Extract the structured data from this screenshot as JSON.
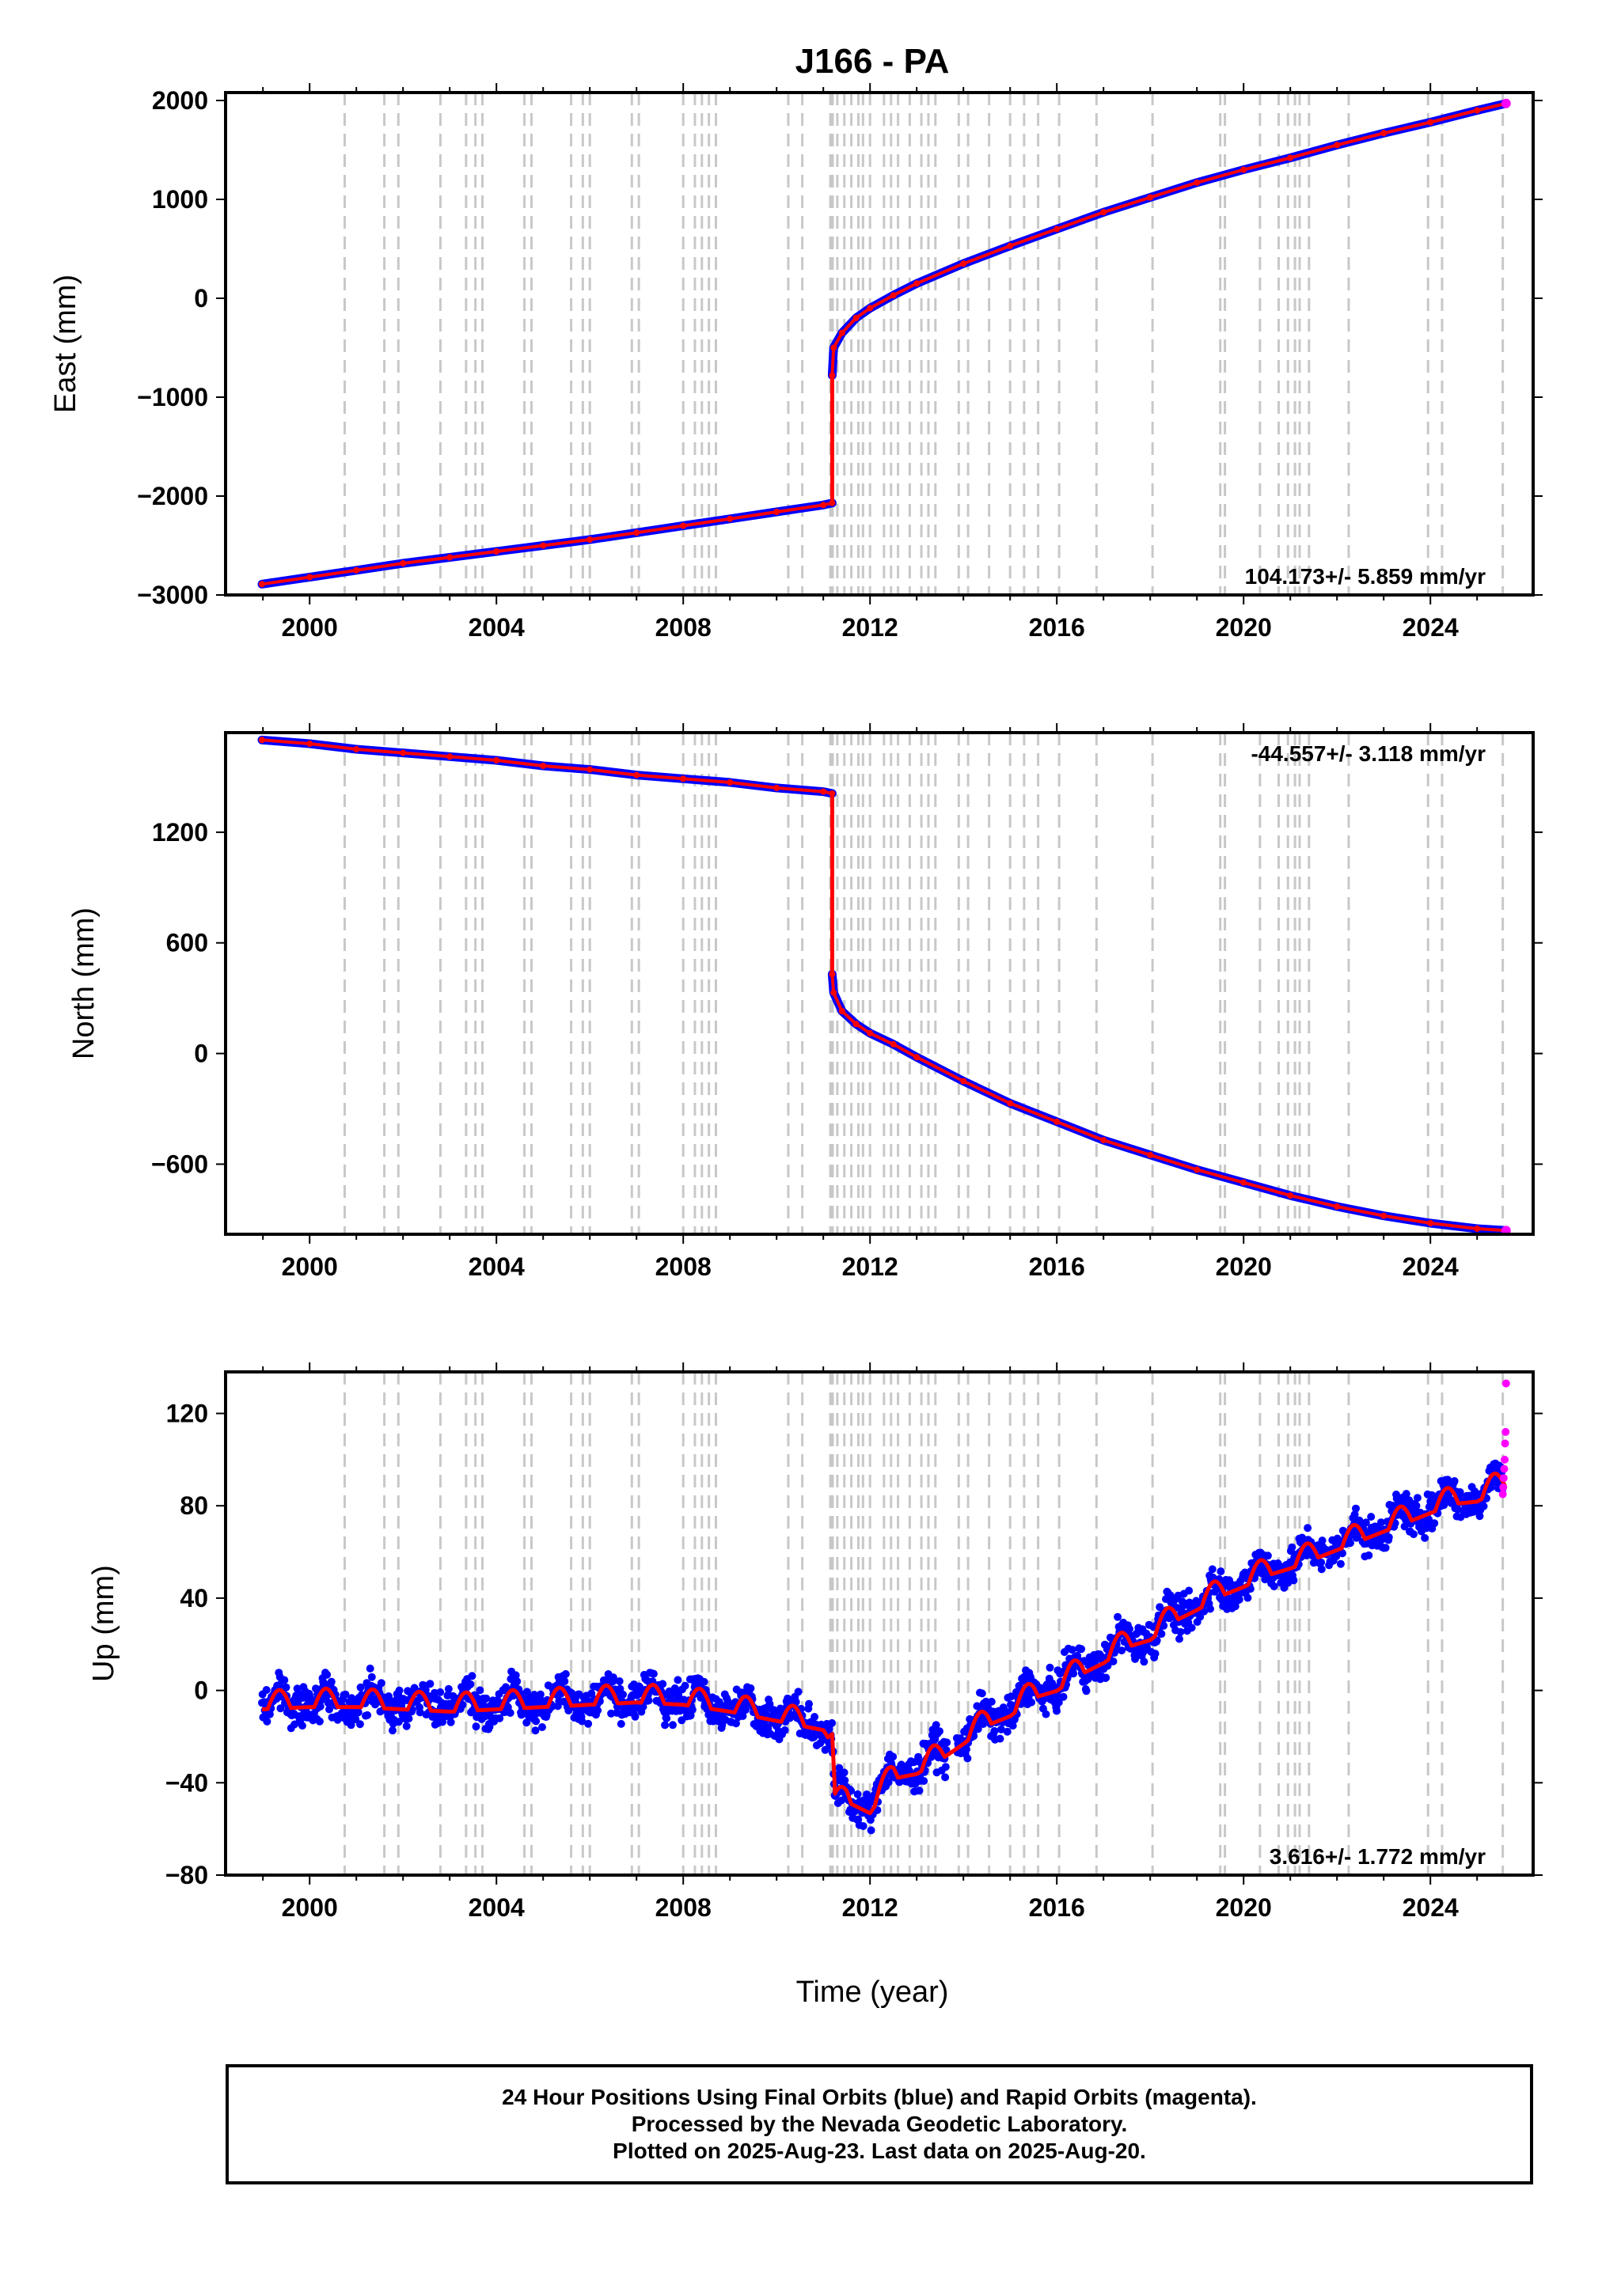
{
  "title": "J166 - PA",
  "xlabel": "Time (year)",
  "colors": {
    "final_orbits": "#0000ff",
    "rapid_orbits": "#ff00ff",
    "model": "#ff0000",
    "event_lines": "#c8c8c8",
    "frame": "#000000"
  },
  "footer": {
    "line1": "24 Hour Positions Using Final Orbits (blue) and Rapid Orbits (magenta).",
    "line2": "Processed by the Nevada Geodetic Laboratory.",
    "line3": "Plotted on 2025-Aug-23. Last data on 2025-Aug-20."
  },
  "chart_data": [
    {
      "type": "scatter",
      "ylabel": "East (mm)",
      "rate_label": "104.173+/- 5.859 mm/yr",
      "rate_position": "bottom-right",
      "xlim": [
        1998.2,
        2026.2
      ],
      "ylim": [
        -3000,
        2080
      ],
      "x_ticks": [
        2000,
        2004,
        2008,
        2012,
        2016,
        2020,
        2024
      ],
      "y_ticks": [
        2000,
        1000,
        0,
        -1000,
        -2000,
        -3000
      ],
      "series": [
        {
          "x": [
            1998.98,
            2000,
            2001,
            2002,
            2003,
            2004,
            2005,
            2006,
            2007,
            2008,
            2009,
            2010,
            2011,
            2011.19
          ],
          "y": [
            -2890,
            -2820,
            -2750,
            -2680,
            -2620,
            -2560,
            -2500,
            -2440,
            -2370,
            -2300,
            -2230,
            -2160,
            -2090,
            -2070
          ]
        },
        {
          "x": [
            2011.19,
            2011.22,
            2011.4,
            2011.7,
            2012,
            2012.5,
            2013,
            2014,
            2015,
            2016,
            2017,
            2018,
            2019,
            2020,
            2021,
            2022,
            2023,
            2024,
            2025,
            2025.62
          ],
          "y": [
            -780,
            -500,
            -350,
            -200,
            -100,
            30,
            150,
            350,
            530,
            700,
            870,
            1020,
            1170,
            1300,
            1420,
            1550,
            1670,
            1780,
            1900,
            1970
          ]
        }
      ]
    },
    {
      "type": "scatter",
      "ylabel": "North (mm)",
      "rate_label": "-44.557+/- 3.118 mm/yr",
      "rate_position": "top-right",
      "xlim": [
        1998.2,
        2026.2
      ],
      "ylim": [
        -980,
        1740
      ],
      "x_ticks": [
        2000,
        2004,
        2008,
        2012,
        2016,
        2020,
        2024
      ],
      "y_ticks": [
        1200,
        600,
        0,
        -600
      ],
      "series": [
        {
          "x": [
            1998.98,
            2000,
            2001,
            2002,
            2003,
            2004,
            2005,
            2006,
            2007,
            2008,
            2009,
            2010,
            2011,
            2011.19
          ],
          "y": [
            1700,
            1680,
            1650,
            1630,
            1610,
            1590,
            1560,
            1540,
            1510,
            1490,
            1470,
            1440,
            1420,
            1410
          ]
        },
        {
          "x": [
            2011.19,
            2011.22,
            2011.4,
            2011.7,
            2012,
            2012.5,
            2013,
            2014,
            2015,
            2016,
            2017,
            2018,
            2019,
            2020,
            2021,
            2022,
            2023,
            2024,
            2025,
            2025.62
          ],
          "y": [
            430,
            330,
            230,
            160,
            110,
            50,
            -20,
            -150,
            -270,
            -370,
            -470,
            -550,
            -630,
            -700,
            -770,
            -830,
            -880,
            -920,
            -950,
            -960
          ]
        }
      ]
    },
    {
      "type": "scatter",
      "ylabel": "Up (mm)",
      "rate_label": "3.616+/- 1.772 mm/yr",
      "rate_position": "bottom-right",
      "xlim": [
        1998.2,
        2026.2
      ],
      "ylim": [
        -80,
        138
      ],
      "x_ticks": [
        2000,
        2004,
        2008,
        2012,
        2016,
        2020,
        2024
      ],
      "y_ticks": [
        120,
        80,
        40,
        0,
        -40,
        -80
      ],
      "model": {
        "x": [
          1998.98,
          2000,
          2001,
          2002,
          2003,
          2004,
          2005,
          2006,
          2007,
          2008,
          2009,
          2010,
          2011,
          2011.19,
          2011.25,
          2011.5,
          2012,
          2012.5,
          2013,
          2013.5,
          2014,
          2014.5,
          2015,
          2015.5,
          2016,
          2016.5,
          2017,
          2017.5,
          2018,
          2018.5,
          2019,
          2019.5,
          2020,
          2020.5,
          2021,
          2021.5,
          2022,
          2022.5,
          2023,
          2023.5,
          2024,
          2024.5,
          2025,
          2025.62
        ],
        "y": [
          -5,
          -4,
          -4,
          -5,
          -6,
          -5,
          -4,
          -3,
          -2,
          -3,
          -6,
          -10,
          -14,
          -20,
          -48,
          -45,
          -50,
          -35,
          -33,
          -27,
          -20,
          -12,
          -8,
          0,
          3,
          10,
          15,
          22,
          25,
          33,
          38,
          44,
          48,
          53,
          56,
          60,
          64,
          68,
          72,
          76,
          80,
          84,
          85,
          92
        ]
      },
      "seasonal_amplitude": 8,
      "scatter_spread": 10,
      "rapid_orbits": {
        "x": [
          2025.55,
          2025.56,
          2025.57,
          2025.58,
          2025.59,
          2025.6,
          2025.61,
          2025.62
        ],
        "y": [
          85,
          88,
          92,
          96,
          100,
          107,
          112,
          133
        ]
      }
    }
  ],
  "event_years": [
    2000.75,
    2001.6,
    2001.9,
    2002.8,
    2003.35,
    2003.55,
    2003.7,
    2004.6,
    2004.75,
    2005.6,
    2005.85,
    2006.0,
    2006.9,
    2007.05,
    2008.0,
    2008.25,
    2008.4,
    2008.55,
    2008.7,
    2010.25,
    2010.55,
    2011.15,
    2011.2,
    2011.3,
    2011.45,
    2011.6,
    2011.75,
    2011.85,
    2012.0,
    2012.3,
    2012.45,
    2012.6,
    2012.85,
    2013.1,
    2013.25,
    2013.4,
    2013.9,
    2014.1,
    2014.55,
    2015.0,
    2015.3,
    2015.6,
    2016.05,
    2016.85,
    2018.05,
    2019.5,
    2019.6,
    2020.35,
    2020.75,
    2020.95,
    2021.1,
    2021.2,
    2021.4,
    2022.25,
    2023.95,
    2024.25,
    2025.55
  ]
}
